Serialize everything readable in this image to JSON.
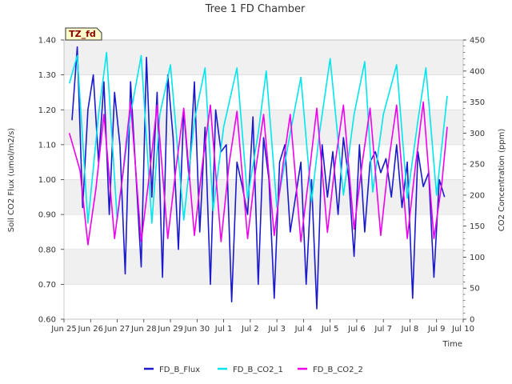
{
  "chart_data": {
    "type": "line",
    "title": "Tree 1 FD Chamber",
    "xlabel": "Time",
    "ylabel": "Soil CO2 Flux (umol/m2/s)",
    "y2label": "CO2 Concentration (ppm)",
    "annotation": "TZ_fd",
    "xlim": [
      0,
      15
    ],
    "ylim": [
      0.6,
      1.4
    ],
    "y2lim": [
      0,
      450
    ],
    "xticks": [
      {
        "value": 0,
        "label": "Jun 25"
      },
      {
        "value": 1,
        "label": "Jun 26"
      },
      {
        "value": 2,
        "label": "Jun 27"
      },
      {
        "value": 3,
        "label": "Jun 28"
      },
      {
        "value": 4,
        "label": "Jun 29"
      },
      {
        "value": 5,
        "label": "Jun 30"
      },
      {
        "value": 6,
        "label": "Jul 1"
      },
      {
        "value": 7,
        "label": "Jul 2"
      },
      {
        "value": 8,
        "label": "Jul 3"
      },
      {
        "value": 9,
        "label": "Jul 4"
      },
      {
        "value": 10,
        "label": "Jul 5"
      },
      {
        "value": 11,
        "label": "Jul 6"
      },
      {
        "value": 12,
        "label": "Jul 7"
      },
      {
        "value": 13,
        "label": "Jul 8"
      },
      {
        "value": 14,
        "label": "Jul 9"
      },
      {
        "value": 15,
        "label": "Jul 10"
      }
    ],
    "yticks": [
      "0.60",
      "0.70",
      "0.80",
      "0.90",
      "1.00",
      "1.10",
      "1.20",
      "1.30",
      "1.40"
    ],
    "y2ticks": [
      "0",
      "50",
      "100",
      "150",
      "200",
      "250",
      "300",
      "350",
      "400",
      "450"
    ],
    "series": [
      {
        "name": "FD_B_Flux",
        "axis": "left",
        "color": "#1a1acc",
        "x": [
          0.3,
          0.5,
          0.7,
          0.9,
          1.1,
          1.3,
          1.5,
          1.7,
          1.9,
          2.1,
          2.3,
          2.5,
          2.7,
          2.9,
          3.1,
          3.3,
          3.5,
          3.7,
          3.9,
          4.1,
          4.3,
          4.5,
          4.7,
          4.9,
          5.1,
          5.3,
          5.5,
          5.7,
          5.9,
          6.1,
          6.3,
          6.5,
          6.7,
          6.9,
          7.1,
          7.3,
          7.5,
          7.7,
          7.9,
          8.1,
          8.3,
          8.5,
          8.7,
          8.9,
          9.1,
          9.3,
          9.5,
          9.7,
          9.9,
          10.1,
          10.3,
          10.5,
          10.7,
          10.9,
          11.1,
          11.3,
          11.5,
          11.7,
          11.9,
          12.1,
          12.3,
          12.5,
          12.7,
          12.9,
          13.1,
          13.3,
          13.5,
          13.7,
          13.9,
          14.1,
          14.3
        ],
        "values": [
          1.17,
          1.38,
          0.92,
          1.2,
          1.3,
          1.05,
          1.28,
          0.9,
          1.25,
          1.1,
          0.73,
          1.28,
          1.02,
          0.75,
          1.35,
          0.95,
          1.25,
          0.72,
          1.3,
          1.12,
          0.8,
          1.2,
          1.0,
          1.28,
          0.85,
          1.15,
          0.7,
          1.2,
          1.08,
          1.1,
          0.65,
          1.05,
          0.98,
          0.9,
          1.18,
          0.7,
          1.12,
          1.0,
          0.66,
          1.05,
          1.1,
          0.85,
          0.95,
          1.05,
          0.7,
          1.0,
          0.63,
          1.1,
          0.95,
          1.08,
          0.9,
          1.12,
          1.0,
          0.78,
          1.1,
          0.85,
          1.05,
          1.08,
          1.02,
          1.06,
          0.95,
          1.1,
          0.92,
          1.05,
          0.66,
          1.08,
          0.98,
          1.02,
          0.72,
          1.0,
          0.95
        ]
      },
      {
        "name": "FD_B_CO2_1",
        "axis": "right",
        "color": "#00e5ee",
        "x": [
          0.2,
          0.5,
          0.9,
          1.3,
          1.6,
          2.0,
          2.5,
          2.9,
          3.3,
          3.6,
          4.0,
          4.5,
          4.9,
          5.3,
          5.6,
          6.0,
          6.5,
          6.9,
          7.3,
          7.6,
          8.0,
          8.5,
          8.9,
          9.3,
          9.6,
          10.0,
          10.5,
          10.9,
          11.3,
          11.6,
          12.0,
          12.5,
          12.9,
          13.3,
          13.6,
          14.0,
          14.4
        ],
        "values": [
          380,
          425,
          155,
          330,
          430,
          160,
          330,
          425,
          155,
          330,
          410,
          160,
          320,
          405,
          175,
          310,
          405,
          195,
          300,
          400,
          180,
          300,
          390,
          190,
          300,
          420,
          200,
          330,
          415,
          205,
          330,
          410,
          195,
          320,
          405,
          200,
          360
        ]
      },
      {
        "name": "FD_B_CO2_2",
        "axis": "right",
        "color": "#ee00ee",
        "x": [
          0.2,
          0.6,
          0.9,
          1.2,
          1.5,
          1.9,
          2.2,
          2.5,
          2.9,
          3.2,
          3.5,
          3.9,
          4.2,
          4.5,
          4.9,
          5.2,
          5.5,
          5.9,
          6.2,
          6.5,
          6.9,
          7.2,
          7.5,
          7.9,
          8.2,
          8.5,
          8.9,
          9.2,
          9.5,
          9.9,
          10.2,
          10.5,
          10.9,
          11.2,
          11.5,
          11.9,
          12.2,
          12.5,
          12.9,
          13.2,
          13.5,
          13.9,
          14.2,
          14.4
        ],
        "values": [
          300,
          240,
          120,
          210,
          330,
          130,
          230,
          350,
          125,
          230,
          345,
          130,
          240,
          340,
          135,
          250,
          345,
          125,
          250,
          335,
          130,
          240,
          330,
          135,
          240,
          330,
          125,
          230,
          340,
          140,
          255,
          345,
          145,
          250,
          340,
          135,
          255,
          345,
          130,
          245,
          350,
          130,
          220,
          310
        ]
      }
    ],
    "legend_position": "bottom-center"
  }
}
